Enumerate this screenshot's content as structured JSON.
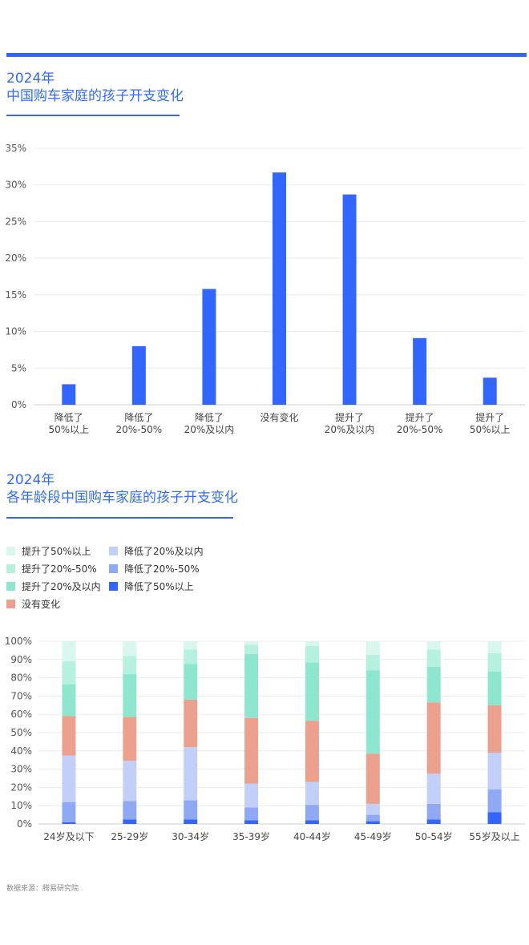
{
  "source": "数据来源：腾易研究院",
  "chart1_title": {
    "year": "2024年",
    "subtitle": "中国购车家庭的孩子开支变化"
  },
  "chart2_title": {
    "year": "2024年",
    "subtitle": "各年龄段中国购车家庭的孩子开支变化"
  },
  "chart_data": [
    {
      "type": "bar",
      "title": "2024年 中国购车家庭的孩子开支变化",
      "categories": [
        "降低了\n50%以上",
        "降低了\n20%-50%",
        "降低了\n20%及以内",
        "没有变化",
        "提升了\n20%及以内",
        "提升了\n20%-50%",
        "提升了\n50%以上"
      ],
      "values": [
        2.8,
        8.0,
        15.8,
        31.7,
        28.7,
        9.1,
        3.7
      ],
      "ylim": [
        0,
        35
      ],
      "yticks": [
        "0%",
        "5%",
        "10%",
        "15%",
        "20%",
        "25%",
        "30%",
        "35%"
      ],
      "grid": true,
      "color": "#3366ff"
    },
    {
      "type": "bar",
      "stacked": true,
      "title": "2024年 各年龄段中国购车家庭的孩子开支变化",
      "categories": [
        "24岁及以下",
        "25-29岁",
        "30-34岁",
        "35-39岁",
        "40-44岁",
        "45-49岁",
        "50-54岁",
        "55岁及以上"
      ],
      "ylim": [
        0,
        100
      ],
      "yticks": [
        "0%",
        "10%",
        "20%",
        "30%",
        "40%",
        "50%",
        "60%",
        "70%",
        "80%",
        "90%",
        "100%"
      ],
      "grid": true,
      "legend_position": "top-left",
      "series": [
        {
          "name": "降低了50%以上",
          "color": "#3366ff",
          "values": [
            1,
            2.5,
            2.5,
            2,
            2,
            1.5,
            2.5,
            6.5
          ]
        },
        {
          "name": "降低了20%-50%",
          "color": "#8fa9f5",
          "values": [
            11,
            10,
            10.5,
            7,
            8.5,
            3.5,
            8.5,
            12.5
          ]
        },
        {
          "name": "降低了20%及以内",
          "color": "#c2cff8",
          "values": [
            25.5,
            22,
            29,
            13,
            12.5,
            6,
            16.5,
            20
          ]
        },
        {
          "name": "没有变化",
          "color": "#eca08e",
          "values": [
            21.5,
            24,
            26,
            36,
            33.5,
            27.5,
            39,
            26
          ]
        },
        {
          "name": "提升了20%及以内",
          "color": "#8ee6cf",
          "values": [
            17.5,
            23.5,
            19.5,
            35,
            32,
            45.5,
            19.5,
            18.5
          ]
        },
        {
          "name": "提升了20%-50%",
          "color": "#b6f0df",
          "values": [
            12.5,
            10,
            8,
            5,
            9,
            8.5,
            9.5,
            10
          ]
        },
        {
          "name": "提升了50%以上",
          "color": "#d9f7ee",
          "values": [
            11,
            8,
            4.5,
            2,
            2.5,
            7.5,
            4.5,
            6.5
          ]
        }
      ],
      "legend_order": [
        "提升了50%以上",
        "降低了20%及以内",
        "提升了20%-50%",
        "降低了20%-50%",
        "提升了20%及以内",
        "降低了50%以上",
        "没有变化"
      ]
    }
  ]
}
